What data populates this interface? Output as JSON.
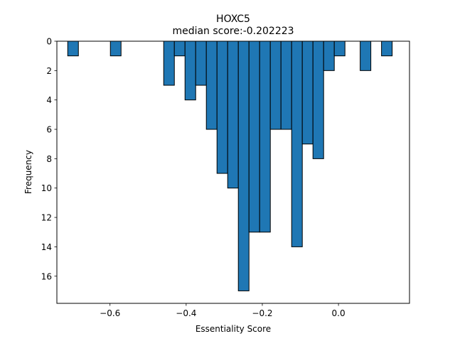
{
  "chart_data": {
    "type": "bar",
    "orientation": "histogram",
    "title": "HOXC5",
    "subtitle": "median score:-0.202223",
    "xlabel": "Essentiality Score",
    "ylabel": "Frequency",
    "y_inverted": true,
    "xlim": [
      -0.7395,
      0.1865
    ],
    "ylim": [
      0,
      17.85
    ],
    "bar_color": "#1f77b4",
    "edge_color": "#000000",
    "bin_width": 0.028,
    "bins": [
      {
        "x0": -0.711,
        "value": 1
      },
      {
        "x0": -0.599,
        "value": 1
      },
      {
        "x0": -0.459,
        "value": 3
      },
      {
        "x0": -0.431,
        "value": 1
      },
      {
        "x0": -0.403,
        "value": 4
      },
      {
        "x0": -0.375,
        "value": 3
      },
      {
        "x0": -0.347,
        "value": 6
      },
      {
        "x0": -0.319,
        "value": 9
      },
      {
        "x0": -0.291,
        "value": 10
      },
      {
        "x0": -0.263,
        "value": 17
      },
      {
        "x0": -0.235,
        "value": 13
      },
      {
        "x0": -0.207,
        "value": 13
      },
      {
        "x0": -0.179,
        "value": 6
      },
      {
        "x0": -0.151,
        "value": 6
      },
      {
        "x0": -0.123,
        "value": 14
      },
      {
        "x0": -0.095,
        "value": 7
      },
      {
        "x0": -0.067,
        "value": 8
      },
      {
        "x0": -0.039,
        "value": 2
      },
      {
        "x0": -0.011,
        "value": 1
      },
      {
        "x0": 0.057,
        "value": 2
      },
      {
        "x0": 0.113,
        "value": 1
      }
    ],
    "x_ticks": [
      {
        "value": -0.6,
        "label": "−0.6"
      },
      {
        "value": -0.4,
        "label": "−0.4"
      },
      {
        "value": -0.2,
        "label": "−0.2"
      },
      {
        "value": 0.0,
        "label": "0.0"
      }
    ],
    "y_ticks": [
      {
        "value": 0,
        "label": "0"
      },
      {
        "value": 2,
        "label": "2"
      },
      {
        "value": 4,
        "label": "4"
      },
      {
        "value": 6,
        "label": "6"
      },
      {
        "value": 8,
        "label": "8"
      },
      {
        "value": 10,
        "label": "10"
      },
      {
        "value": 12,
        "label": "12"
      },
      {
        "value": 14,
        "label": "14"
      },
      {
        "value": 16,
        "label": "16"
      }
    ],
    "grid": false,
    "legend": "none"
  }
}
